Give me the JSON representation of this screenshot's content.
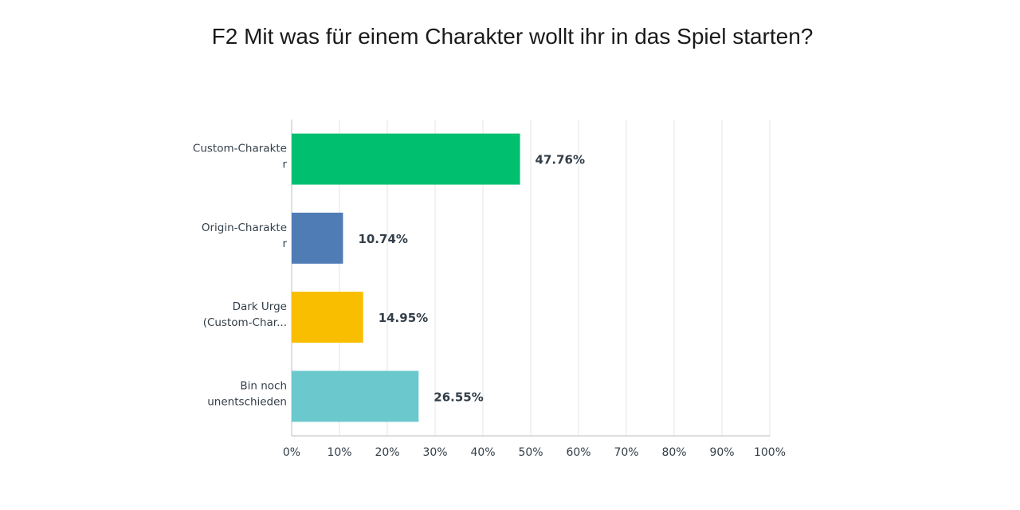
{
  "chart_data": {
    "type": "bar",
    "orientation": "horizontal",
    "title": "F2 Mit was für einem Charakter wollt ihr in das Spiel starten?",
    "categories": [
      [
        "Custom-Charakte",
        "r"
      ],
      [
        "Origin-Charakte",
        "r"
      ],
      [
        "Dark Urge",
        "(Custom-Char..."
      ],
      [
        "Bin noch",
        "unentschieden"
      ]
    ],
    "values": [
      47.76,
      10.74,
      14.95,
      26.55
    ],
    "value_labels": [
      "47.76%",
      "10.74%",
      "14.95%",
      "26.55%"
    ],
    "colors": [
      "#00bf6f",
      "#507cb6",
      "#f9be00",
      "#6bc8cd"
    ],
    "xlim": [
      0,
      100
    ],
    "x_ticks": [
      0,
      10,
      20,
      30,
      40,
      50,
      60,
      70,
      80,
      90,
      100
    ],
    "x_tick_labels": [
      "0%",
      "10%",
      "20%",
      "30%",
      "40%",
      "50%",
      "60%",
      "70%",
      "80%",
      "90%",
      "100%"
    ],
    "grid": true,
    "legend": "none"
  }
}
